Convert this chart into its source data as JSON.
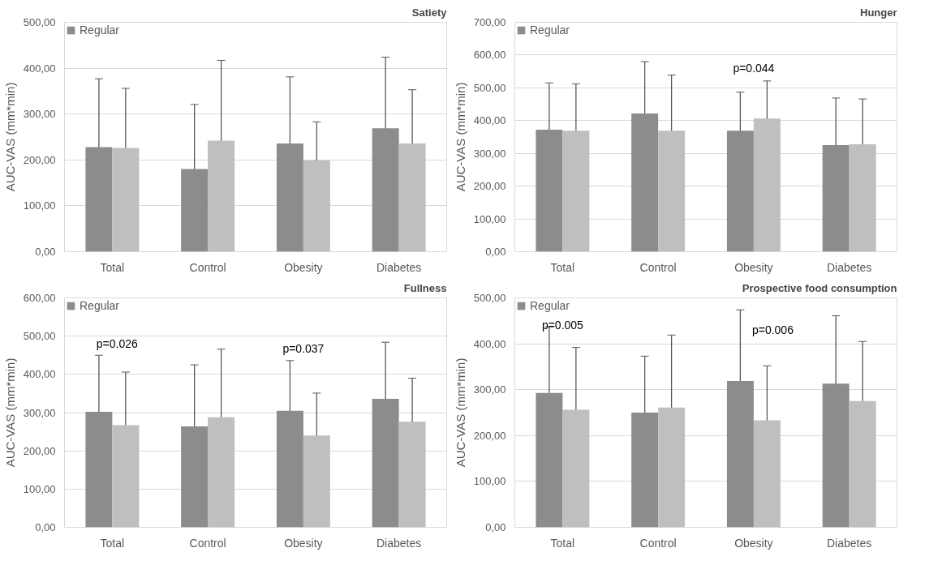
{
  "chart_data": [
    {
      "type": "bar",
      "title": "Satiety",
      "ylabel": "AUC-VAS (mm*min)",
      "categories": [
        "Total",
        "Control",
        "Obesity",
        "Diabetes"
      ],
      "series": [
        {
          "name": "Regular",
          "color": "#8c8c8c",
          "values": [
            228,
            180,
            236,
            269
          ],
          "errors": [
            149,
            141,
            145,
            155
          ]
        },
        {
          "color": "#bfbfbf",
          "values": [
            226,
            242,
            199,
            236
          ],
          "errors": [
            130,
            175,
            84,
            117
          ]
        }
      ],
      "ylim": [
        0,
        500
      ],
      "yticks": [
        {
          "value": 0,
          "label": "0,00"
        },
        {
          "value": 100,
          "label": "100,00"
        },
        {
          "value": 200,
          "label": "200,00"
        },
        {
          "value": 300,
          "label": "300,00"
        },
        {
          "value": 400,
          "label": "400,00"
        },
        {
          "value": 500,
          "label": "500,00"
        }
      ],
      "grid": "y",
      "legend": "top left"
    },
    {
      "type": "bar",
      "title": "Hunger",
      "ylabel": "AUC-VAS (mm*min)",
      "categories": [
        "Total",
        "Control",
        "Obesity",
        "Diabetes"
      ],
      "series": [
        {
          "name": "Regular",
          "color": "#8c8c8c",
          "values": [
            372,
            422,
            369,
            325
          ],
          "errors": [
            143,
            158,
            118,
            144
          ]
        },
        {
          "color": "#bfbfbf",
          "values": [
            369,
            369,
            406,
            328
          ],
          "errors": [
            143,
            170,
            115,
            138
          ]
        }
      ],
      "ylim": [
        0,
        700
      ],
      "yticks": [
        {
          "value": 0,
          "label": "0,00"
        },
        {
          "value": 100,
          "label": "100,00"
        },
        {
          "value": 200,
          "label": "200,00"
        },
        {
          "value": 300,
          "label": "300,00"
        },
        {
          "value": 400,
          "label": "400,00"
        },
        {
          "value": 500,
          "label": "500,00"
        },
        {
          "value": 600,
          "label": "600,00"
        },
        {
          "value": 700,
          "label": "700,00"
        }
      ],
      "annotations": [
        "p=0.044"
      ],
      "grid": "y",
      "legend": "top left"
    },
    {
      "type": "bar",
      "title": "Fullness",
      "ylabel": "AUC-VAS (mm*min)",
      "categories": [
        "Total",
        "Control",
        "Obesity",
        "Diabetes"
      ],
      "series": [
        {
          "name": "Regular",
          "color": "#8c8c8c",
          "values": [
            302,
            264,
            305,
            336
          ],
          "errors": [
            148,
            161,
            131,
            148
          ]
        },
        {
          "color": "#bfbfbf",
          "values": [
            267,
            288,
            240,
            276
          ],
          "errors": [
            139,
            178,
            111,
            114
          ]
        }
      ],
      "ylim": [
        0,
        600
      ],
      "yticks": [
        {
          "value": 0,
          "label": "0,00"
        },
        {
          "value": 100,
          "label": "100,00"
        },
        {
          "value": 200,
          "label": "200,00"
        },
        {
          "value": 300,
          "label": "300,00"
        },
        {
          "value": 400,
          "label": "400,00"
        },
        {
          "value": 500,
          "label": "500,00"
        },
        {
          "value": 600,
          "label": "600,00"
        }
      ],
      "annotations": [
        "p=0.026",
        "p=0.037"
      ],
      "grid": "y",
      "legend": "top left"
    },
    {
      "type": "bar",
      "title": "Prospective food consumption",
      "ylabel": "AUC-VAS (mm*min)",
      "categories": [
        "Total",
        "Control",
        "Obesity",
        "Diabetes"
      ],
      "series": [
        {
          "name": "Regular",
          "color": "#8c8c8c",
          "values": [
            293,
            250,
            319,
            313
          ],
          "errors": [
            144,
            123,
            155,
            148
          ]
        },
        {
          "color": "#bfbfbf",
          "values": [
            256,
            261,
            233,
            275
          ],
          "errors": [
            136,
            158,
            119,
            130
          ]
        }
      ],
      "ylim": [
        0,
        500
      ],
      "yticks": [
        {
          "value": 0,
          "label": "0,00"
        },
        {
          "value": 100,
          "label": "100,00"
        },
        {
          "value": 200,
          "label": "200,00"
        },
        {
          "value": 300,
          "label": "300,00"
        },
        {
          "value": 400,
          "label": "400,00"
        },
        {
          "value": 500,
          "label": "500,00"
        }
      ],
      "annotations": [
        "p=0.005",
        "p=0.006"
      ],
      "grid": "y",
      "legend": "top left"
    }
  ]
}
